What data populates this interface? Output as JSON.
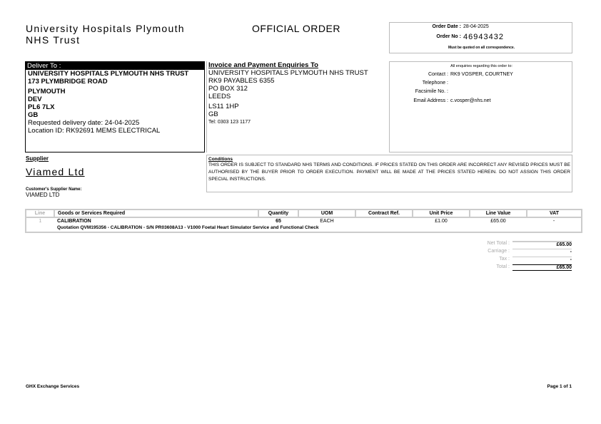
{
  "header": {
    "org_line1": "University Hospitals Plymouth",
    "org_line2": "NHS Trust",
    "doc_title": "OFFICIAL ORDER",
    "order_date_label": "Order Date :",
    "order_date": "28-04-2025",
    "order_no_label": "Order No :",
    "order_no": "46943432",
    "quote_note": "Must be quoted on all correspondence."
  },
  "deliver": {
    "heading": "Deliver To :",
    "lines": [
      "UNIVERSITY HOSPITALS PLYMOUTH NHS TRUST",
      "173 PLYMBRIDGE ROAD",
      "PLYMOUTH",
      "DEV",
      "PL6 7LX",
      "GB"
    ],
    "requested": "Requested delivery date: 24-04-2025",
    "location": "Location ID: RK92691 MEMS ELECTRICAL"
  },
  "invoice": {
    "heading": "Invoice and Payment Enquiries To",
    "lines": [
      "UNIVERSITY HOSPITALS PLYMOUTH NHS TRUST",
      "RK9 PAYABLES 6355",
      "PO BOX 312",
      "LEEDS",
      "LS11 1HP",
      "GB"
    ],
    "tel": "Tel: 0303 123 1177"
  },
  "contact": {
    "heading": "All enquiries regarding this order to:",
    "contact_label": "Contact :",
    "contact": "RK9 VOSPER, COURTNEY",
    "telephone_label": "Telephone :",
    "fax_label": "Facsimile No. :",
    "email_label": "Email Address :",
    "email": "c.vosper@nhs.net"
  },
  "supplier": {
    "heading": "Supplier",
    "name": "Viamed Ltd",
    "cust_label": "Customer's Supplier Name:",
    "cust_name": "VIAMED LTD"
  },
  "conditions": {
    "heading": "Conditions",
    "text": "THIS ORDER IS SUBJECT TO STANDARD NHS TERMS AND CONDITIONS. IF PRICES STATED ON THIS ORDER ARE INCORRECT ANY REVISED PRICES MUST BE AUTHORISED BY THE BUYER PRIOR TO ORDER EXECUTION. PAYMENT WILL BE MADE AT THE PRICES STATED HEREIN. DO NOT ASSIGN THIS ORDER SPECIAL INSTRUCTIONS."
  },
  "table": {
    "columns": [
      "Line",
      "Goods or Services Required",
      "Quantity",
      "UOM",
      "Contract Ref.",
      "Unit Price",
      "Line Value",
      "VAT"
    ],
    "rows": [
      {
        "line": "1",
        "goods": "CALIBRATION",
        "qty": "65",
        "uom": "EACH",
        "contract": "",
        "unit": "£1.00",
        "value": "£65.00",
        "vat": "-",
        "desc": "Quotation QVM195356 - CALIBRATION - S/N PR03608A13 - V1000 Foetal Heart Simulator Service and Functional Check"
      }
    ]
  },
  "totals": [
    {
      "label": "Net Total :",
      "value": "£65.00"
    },
    {
      "label": "Carriage :",
      "value": "-"
    },
    {
      "label": "Tax :",
      "value": "-"
    },
    {
      "label": "Total :",
      "value": "£65.00"
    }
  ],
  "footer": {
    "left": "GHX Exchange Services",
    "right": "Page 1 of 1"
  }
}
